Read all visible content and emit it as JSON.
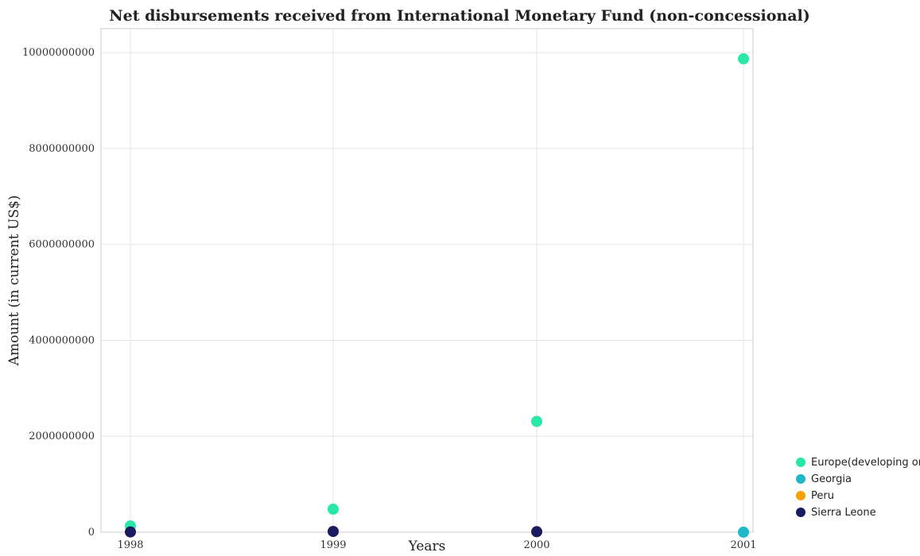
{
  "chart_data": {
    "type": "scatter",
    "title": "Net disbursements received from International Monetary Fund (non-concessional)",
    "xlabel": "Years",
    "ylabel": "Amount (in current US$)",
    "categories": [
      "1998",
      "1999",
      "2000",
      "2001"
    ],
    "ylim": [
      0,
      10500000000
    ],
    "yticks": [
      0,
      2000000000,
      4000000000,
      6000000000,
      8000000000,
      10000000000
    ],
    "ytick_labels": [
      "0",
      "2000000000",
      "4000000000",
      "6000000000",
      "8000000000",
      "10000000000"
    ],
    "grid": true,
    "legend_position": "bottom-right",
    "series": [
      {
        "name": "Europe(developing only)",
        "color": "#27e8a8",
        "values": [
          130000000,
          480000000,
          2310000000,
          9870000000
        ]
      },
      {
        "name": "Georgia",
        "color": "#1fb8c8",
        "values": [
          null,
          null,
          null,
          0
        ]
      },
      {
        "name": "Peru",
        "color": "#f5a200",
        "values": [
          null,
          null,
          null,
          null
        ]
      },
      {
        "name": "Sierra Leone",
        "color": "#1a1a5e",
        "values": [
          5000000,
          15000000,
          10000000,
          null
        ]
      }
    ]
  }
}
